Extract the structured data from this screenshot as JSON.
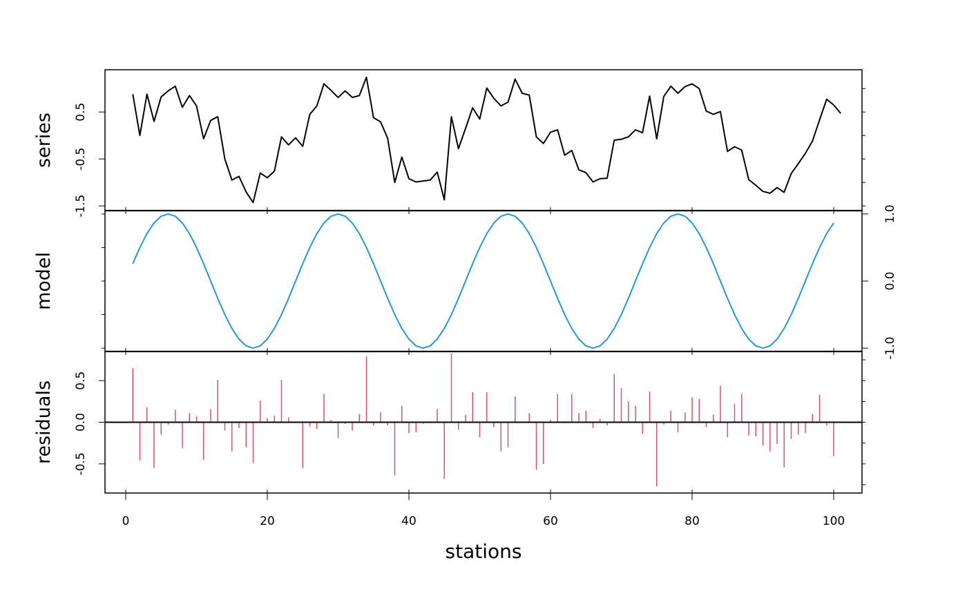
{
  "chart_data": {
    "type": "line",
    "title": "",
    "xlabel": "stations",
    "x_range": [
      1,
      100
    ],
    "x_ticks": [
      0,
      20,
      40,
      60,
      80,
      100
    ],
    "colors": {
      "series": "#000000",
      "model": "#2196e0",
      "residuals": "#e0506e",
      "frame": "#000000"
    },
    "panels": [
      {
        "name": "series",
        "ylabel": "series",
        "axis_side": "left",
        "ylim": [
          -1.6,
          1.4
        ],
        "ticks": [
          -1.5,
          -0.5,
          0.5
        ],
        "tick_labels": [
          "-1.5",
          "-0.5",
          "0.5"
        ],
        "style": "line",
        "values": [
          0.88,
          0.0,
          0.88,
          0.3,
          0.82,
          0.95,
          1.05,
          0.6,
          0.85,
          0.63,
          -0.07,
          0.32,
          0.4,
          -0.5,
          -0.95,
          -0.87,
          -1.2,
          -1.43,
          -0.8,
          -0.9,
          -0.76,
          -0.03,
          -0.2,
          -0.05,
          -0.23,
          0.45,
          0.63,
          1.1,
          0.96,
          0.81,
          0.95,
          0.81,
          0.85,
          1.24,
          0.38,
          0.29,
          -0.06,
          -1.0,
          -0.46,
          -0.92,
          -0.99,
          -0.97,
          -0.95,
          -0.78,
          -1.37,
          0.4,
          -0.28,
          0.15,
          0.59,
          0.35,
          1.01,
          0.79,
          0.63,
          0.71,
          1.2,
          0.9,
          0.86,
          -0.03,
          -0.17,
          0.07,
          0.12,
          -0.42,
          -0.32,
          -0.73,
          -0.79,
          -0.99,
          -0.92,
          -0.91,
          -0.1,
          -0.08,
          -0.03,
          0.12,
          0.06,
          0.84,
          -0.07,
          0.83,
          1.05,
          0.9,
          1.04,
          1.1,
          1.0,
          0.52,
          0.45,
          0.51,
          -0.34,
          -0.24,
          -0.31,
          -0.94,
          -1.06,
          -1.19,
          -1.23,
          -1.11,
          -1.21,
          -0.81,
          -0.6,
          -0.38,
          -0.12,
          0.33,
          0.77,
          0.65,
          0.47
        ]
      },
      {
        "name": "model",
        "ylabel": "model",
        "axis_side": "right",
        "ylim": [
          -1.05,
          1.05
        ],
        "ticks": [
          -1.0,
          0.0,
          1.0
        ],
        "tick_labels": [
          "-1.0",
          "0.0",
          "1.0"
        ],
        "style": "line",
        "values": [
          0.259,
          0.5,
          0.707,
          0.866,
          0.966,
          1.0,
          0.966,
          0.866,
          0.707,
          0.5,
          0.259,
          0.0,
          -0.259,
          -0.5,
          -0.707,
          -0.866,
          -0.966,
          -1.0,
          -0.966,
          -0.866,
          -0.707,
          -0.5,
          -0.259,
          0.0,
          0.259,
          0.5,
          0.707,
          0.866,
          0.966,
          1.0,
          0.966,
          0.866,
          0.707,
          0.5,
          0.259,
          0.0,
          -0.259,
          -0.5,
          -0.707,
          -0.866,
          -0.966,
          -1.0,
          -0.966,
          -0.866,
          -0.707,
          -0.5,
          -0.259,
          0.0,
          0.259,
          0.5,
          0.707,
          0.866,
          0.966,
          1.0,
          0.966,
          0.866,
          0.707,
          0.5,
          0.259,
          0.0,
          -0.259,
          -0.5,
          -0.707,
          -0.866,
          -0.966,
          -1.0,
          -0.966,
          -0.866,
          -0.707,
          -0.5,
          -0.259,
          0.0,
          0.259,
          0.5,
          0.707,
          0.866,
          0.966,
          1.0,
          0.966,
          0.866,
          0.707,
          0.5,
          0.259,
          0.0,
          -0.259,
          -0.5,
          -0.707,
          -0.866,
          -0.966,
          -1.0,
          -0.966,
          -0.866,
          -0.707,
          -0.5,
          -0.259,
          0.0,
          0.259,
          0.5,
          0.707,
          0.866
        ]
      },
      {
        "name": "residuals",
        "ylabel": "residuals",
        "axis_side": "left",
        "ylim": [
          -0.85,
          0.85
        ],
        "ticks": [
          -0.5,
          0.0,
          0.5
        ],
        "tick_labels": [
          "-0.5",
          "0.0",
          "0.5"
        ],
        "style": "spikes",
        "baseline": 0,
        "values": [
          0.65,
          -0.46,
          0.18,
          -0.55,
          -0.15,
          -0.03,
          0.15,
          -0.31,
          0.11,
          0.07,
          -0.45,
          0.16,
          0.51,
          -0.1,
          -0.35,
          -0.07,
          -0.3,
          -0.49,
          0.26,
          0.05,
          0.08,
          0.51,
          0.06,
          -0.01,
          -0.55,
          -0.05,
          -0.08,
          0.34,
          0.03,
          -0.19,
          -0.02,
          -0.1,
          0.1,
          0.79,
          -0.04,
          0.12,
          -0.04,
          -0.64,
          0.2,
          -0.13,
          -0.12,
          -0.02,
          -0.01,
          0.16,
          -0.68,
          0.83,
          -0.09,
          0.09,
          0.36,
          -0.18,
          0.36,
          -0.06,
          -0.35,
          -0.3,
          0.31,
          0.01,
          0.11,
          -0.57,
          -0.5,
          0.03,
          0.34,
          0.01,
          0.34,
          0.11,
          0.14,
          -0.07,
          0.04,
          -0.04,
          0.58,
          0.41,
          0.25,
          0.2,
          -0.14,
          0.37,
          -0.77,
          -0.03,
          0.14,
          -0.12,
          0.12,
          0.3,
          0.28,
          -0.06,
          0.09,
          0.44,
          -0.18,
          0.22,
          0.34,
          -0.16,
          -0.17,
          -0.28,
          -0.35,
          -0.26,
          -0.54,
          -0.2,
          -0.15,
          -0.13,
          0.1,
          0.33,
          -0.04,
          -0.41
        ]
      }
    ]
  }
}
